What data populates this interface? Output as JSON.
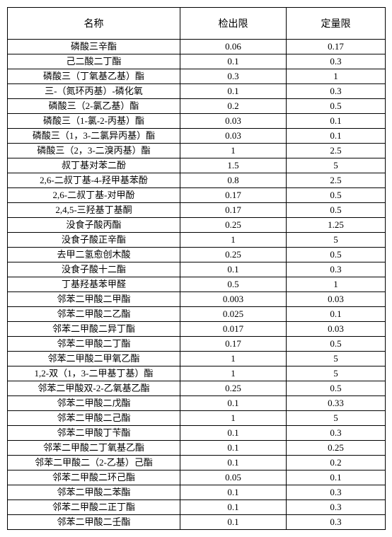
{
  "table": {
    "columns": [
      "名称",
      "检出限",
      "定量限"
    ],
    "rows": [
      [
        "磷酸三辛酯",
        "0.06",
        "0.17"
      ],
      [
        "己二酸二丁酯",
        "0.1",
        "0.3"
      ],
      [
        "磷酸三（丁氧基乙基）酯",
        "0.3",
        "1"
      ],
      [
        "三-（氮环丙基）-磷化氧",
        "0.1",
        "0.3"
      ],
      [
        "磷酸三（2-氯乙基）酯",
        "0.2",
        "0.5"
      ],
      [
        "磷酸三（1-氯-2-丙基）酯",
        "0.03",
        "0.1"
      ],
      [
        "磷酸三（1，3-二氯异丙基）酯",
        "0.03",
        "0.1"
      ],
      [
        "磷酸三（2，3-二溴丙基）酯",
        "1",
        "2.5"
      ],
      [
        "叔丁基对苯二酚",
        "1.5",
        "5"
      ],
      [
        "2,6-二叔丁基-4-羟甲基苯酚",
        "0.8",
        "2.5"
      ],
      [
        "2,6-二叔丁基-对甲酚",
        "0.17",
        "0.5"
      ],
      [
        "2,4,5-三羟基丁基酮",
        "0.17",
        "0.5"
      ],
      [
        "没食子酸丙酯",
        "0.25",
        "1.25"
      ],
      [
        "没食子酸正辛酯",
        "1",
        "5"
      ],
      [
        "去甲二氢愈创木酸",
        "0.25",
        "0.5"
      ],
      [
        "没食子酸十二酯",
        "0.1",
        "0.3"
      ],
      [
        "丁基羟基苯甲醛",
        "0.5",
        "1"
      ],
      [
        "邻苯二甲酸二甲酯",
        "0.003",
        "0.03"
      ],
      [
        "邻苯二甲酸二乙酯",
        "0.025",
        "0.1"
      ],
      [
        "邻苯二甲酸二异丁酯",
        "0.017",
        "0.03"
      ],
      [
        "邻苯二甲酸二丁酯",
        "0.17",
        "0.5"
      ],
      [
        "邻苯二甲酸二甲氧乙酯",
        "1",
        "5"
      ],
      [
        "1,2-双（1，3-二甲基丁基）酯",
        "1",
        "5"
      ],
      [
        "邻苯二甲酸双-2-乙氧基乙酯",
        "0.25",
        "0.5"
      ],
      [
        "邻苯二甲酸二戊酯",
        "0.1",
        "0.33"
      ],
      [
        "邻苯二甲酸二己酯",
        "1",
        "5"
      ],
      [
        "邻苯二甲酸丁苄酯",
        "0.1",
        "0.3"
      ],
      [
        "邻苯二甲酸二丁氧基乙酯",
        "0.1",
        "0.25"
      ],
      [
        "邻苯二甲酸二（2-乙基）己酯",
        "0.1",
        "0.2"
      ],
      [
        "邻苯二甲酸二环己酯",
        "0.05",
        "0.1"
      ],
      [
        "邻苯二甲酸二苯酯",
        "0.1",
        "0.3"
      ],
      [
        "邻苯二甲酸二正丁酯",
        "0.1",
        "0.3"
      ],
      [
        "邻苯二甲酸二壬酯",
        "0.1",
        "0.3"
      ]
    ]
  }
}
